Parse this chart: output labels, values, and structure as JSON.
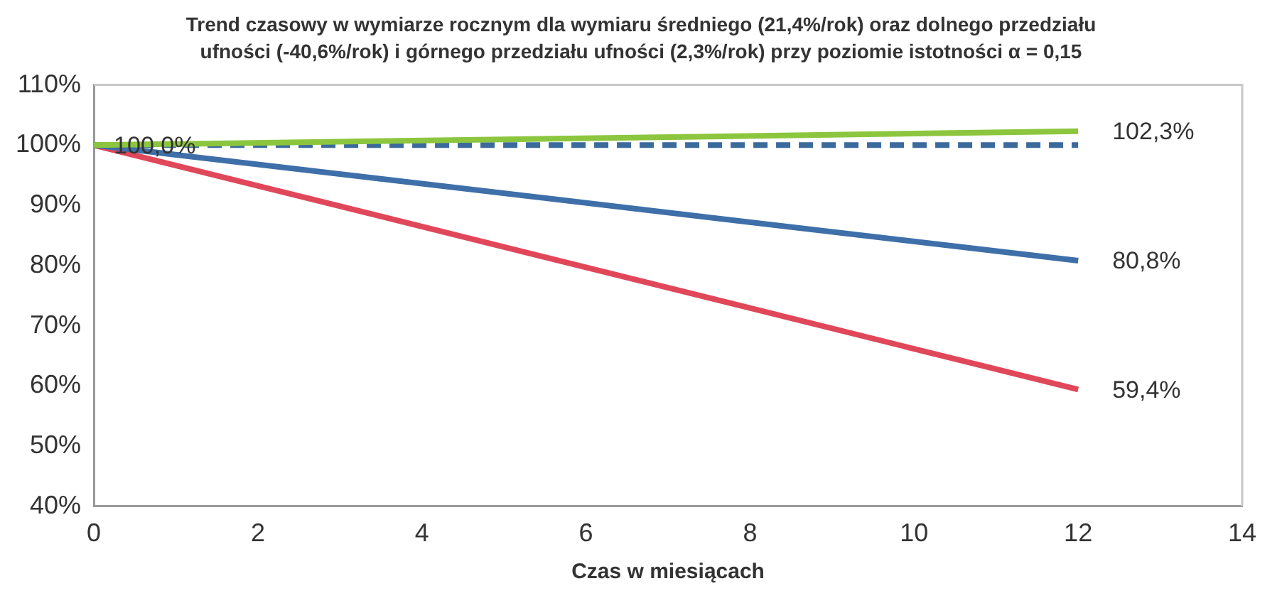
{
  "chart_data": {
    "type": "line",
    "title": "Trend czasowy w wymiarze rocznym dla wymiaru średniego (21,4%/rok) oraz dolnego przedziału ufności (-40,6%/rok) i górnego przedziału ufności (2,3%/rok) przy poziomie istotności α = 0,15",
    "xlabel": "Czas w miesiącach",
    "x": [
      0,
      12
    ],
    "series": [
      {
        "color": "#8cc63e",
        "values": [
          100,
          102.3
        ],
        "value_labels": [
          null,
          "102,3%"
        ]
      },
      {
        "color": "#3b6a9c",
        "values": [
          100,
          100
        ],
        "line_style": "dashed",
        "value_labels": [
          "100,0%",
          null
        ]
      },
      {
        "color": "#3e6fa8",
        "values": [
          100,
          80.8
        ],
        "value_labels": [
          null,
          "80,8%"
        ]
      },
      {
        "color": "#e0485a",
        "values": [
          100,
          59.4
        ],
        "value_labels": [
          null,
          "59,4%"
        ]
      }
    ],
    "xlim": [
      0,
      14
    ],
    "xticks": [
      0,
      2,
      4,
      6,
      8,
      10,
      12,
      14
    ],
    "ylim": [
      40,
      110
    ],
    "yticks": [
      {
        "value": 40,
        "label": "40%"
      },
      {
        "value": 50,
        "label": "50%"
      },
      {
        "value": 60,
        "label": "60%"
      },
      {
        "value": 70,
        "label": "70%"
      },
      {
        "value": 80,
        "label": "80%"
      },
      {
        "value": 90,
        "label": "90%"
      },
      {
        "value": 100,
        "label": "100%"
      },
      {
        "value": 110,
        "label": "110%"
      }
    ],
    "grid": false,
    "legend": false,
    "marker": "none"
  }
}
